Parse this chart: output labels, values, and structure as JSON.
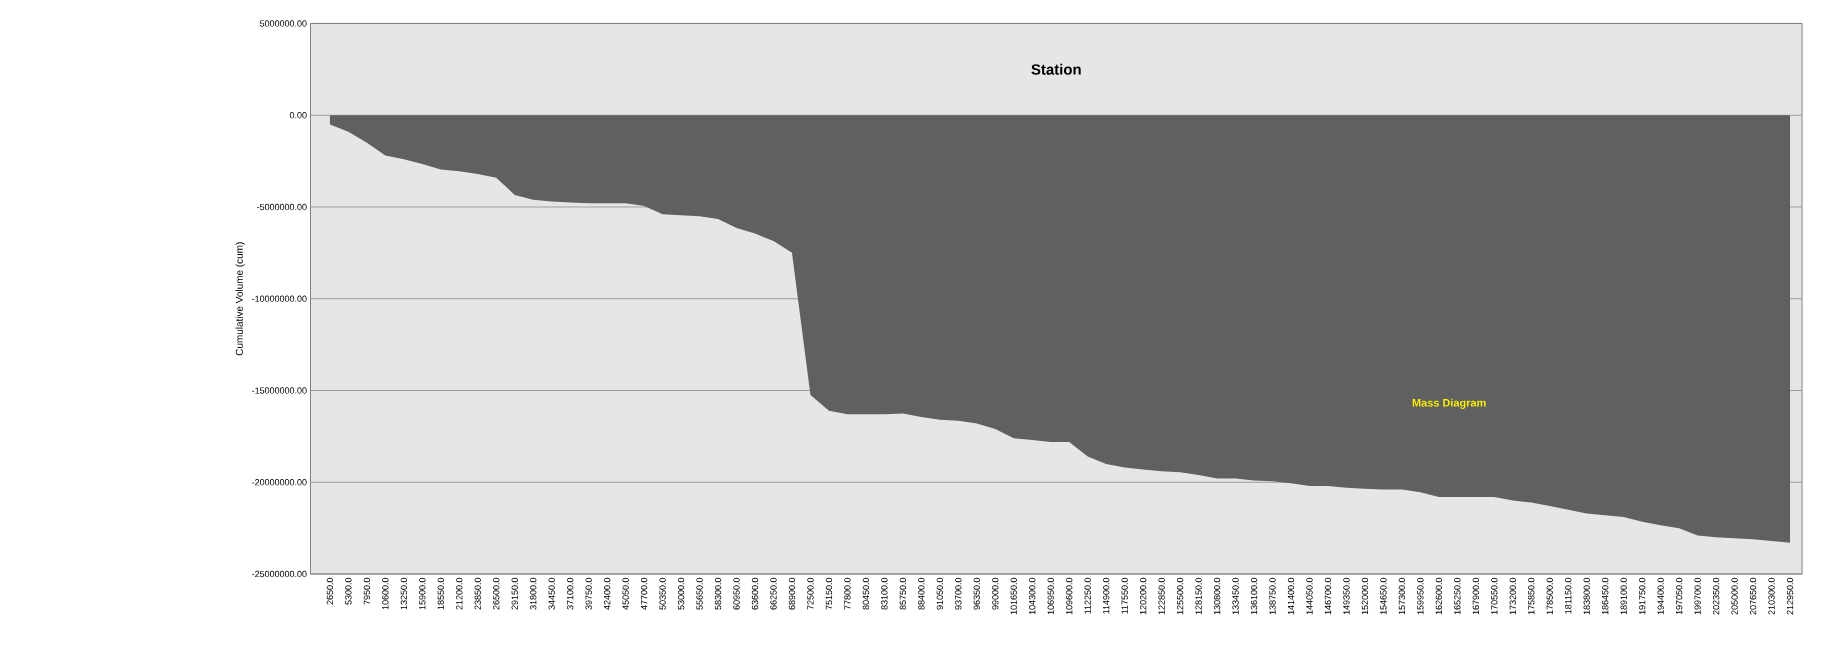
{
  "chart_data": {
    "type": "area",
    "title": "Station",
    "ylabel": "Cumulative Volume (cum)",
    "categories": [
      "2650.0",
      "5300.0",
      "7950.0",
      "10600.0",
      "13250.0",
      "15900.0",
      "18550.0",
      "21200.0",
      "23850.0",
      "26500.0",
      "29150.0",
      "31800.0",
      "34450.0",
      "37100.0",
      "39750.0",
      "42400.0",
      "45050.0",
      "47700.0",
      "50350.0",
      "53000.0",
      "55650.0",
      "58300.0",
      "60950.0",
      "63600.0",
      "66250.0",
      "68900.0",
      "72500.0",
      "75150.0",
      "77800.0",
      "80450.0",
      "83100.0",
      "85750.0",
      "88400.0",
      "91050.0",
      "93700.0",
      "96350.0",
      "99000.0",
      "101650.0",
      "104300.0",
      "106950.0",
      "109600.0",
      "112250.0",
      "114900.0",
      "117550.0",
      "120200.0",
      "122850.0",
      "125500.0",
      "128150.0",
      "130800.0",
      "133450.0",
      "136100.0",
      "138750.0",
      "141400.0",
      "144050.0",
      "146700.0",
      "149350.0",
      "152000.0",
      "154650.0",
      "157300.0",
      "159950.0",
      "162600.0",
      "165250.0",
      "167900.0",
      "170550.0",
      "173200.0",
      "175850.0",
      "178500.0",
      "181150.0",
      "183800.0",
      "186450.0",
      "189100.0",
      "191750.0",
      "194400.0",
      "197050.0",
      "199700.0",
      "202350.0",
      "205000.0",
      "207650.0",
      "210300.0",
      "212950.0"
    ],
    "series": [
      {
        "name": "Mass Diagram",
        "color": "#606060",
        "values": [
          -500000,
          -900000,
          -1500000,
          -2200000,
          -2400000,
          -2650000,
          -2950000,
          -3050000,
          -3200000,
          -3400000,
          -4350000,
          -4600000,
          -4700000,
          -4750000,
          -4800000,
          -4800000,
          -4800000,
          -4950000,
          -5400000,
          -5450000,
          -5500000,
          -5650000,
          -6150000,
          -6450000,
          -6850000,
          -7500000,
          -15250000,
          -16100000,
          -16300000,
          -16300000,
          -16300000,
          -16250000,
          -16450000,
          -16600000,
          -16650000,
          -16800000,
          -17100000,
          -17600000,
          -17700000,
          -17800000,
          -17800000,
          -18600000,
          -19000000,
          -19200000,
          -19300000,
          -19400000,
          -19450000,
          -19600000,
          -19800000,
          -19800000,
          -19900000,
          -19950000,
          -20050000,
          -20200000,
          -20200000,
          -20300000,
          -20350000,
          -20400000,
          -20400000,
          -20550000,
          -20800000,
          -20800000,
          -20800000,
          -20800000,
          -21000000,
          -21100000,
          -21300000,
          -21500000,
          -21700000,
          -21800000,
          -21900000,
          -22150000,
          -22350000,
          -22500000,
          -22900000,
          -23000000,
          -23050000,
          -23100000,
          -23200000,
          -23300000
        ]
      }
    ],
    "ylim": [
      -25000000,
      5000000
    ],
    "yticks": [
      {
        "value": -25000000,
        "label": "-25000000.00"
      },
      {
        "value": -20000000,
        "label": "-20000000.00"
      },
      {
        "value": -15000000,
        "label": "-15000000.00"
      },
      {
        "value": -10000000,
        "label": "-10000000.00"
      },
      {
        "value": -5000000,
        "label": "-5000000.00"
      },
      {
        "value": 0,
        "label": "0.00"
      },
      {
        "value": 5000000,
        "label": "5000000.00"
      }
    ],
    "grid": "y",
    "legend": "right"
  }
}
